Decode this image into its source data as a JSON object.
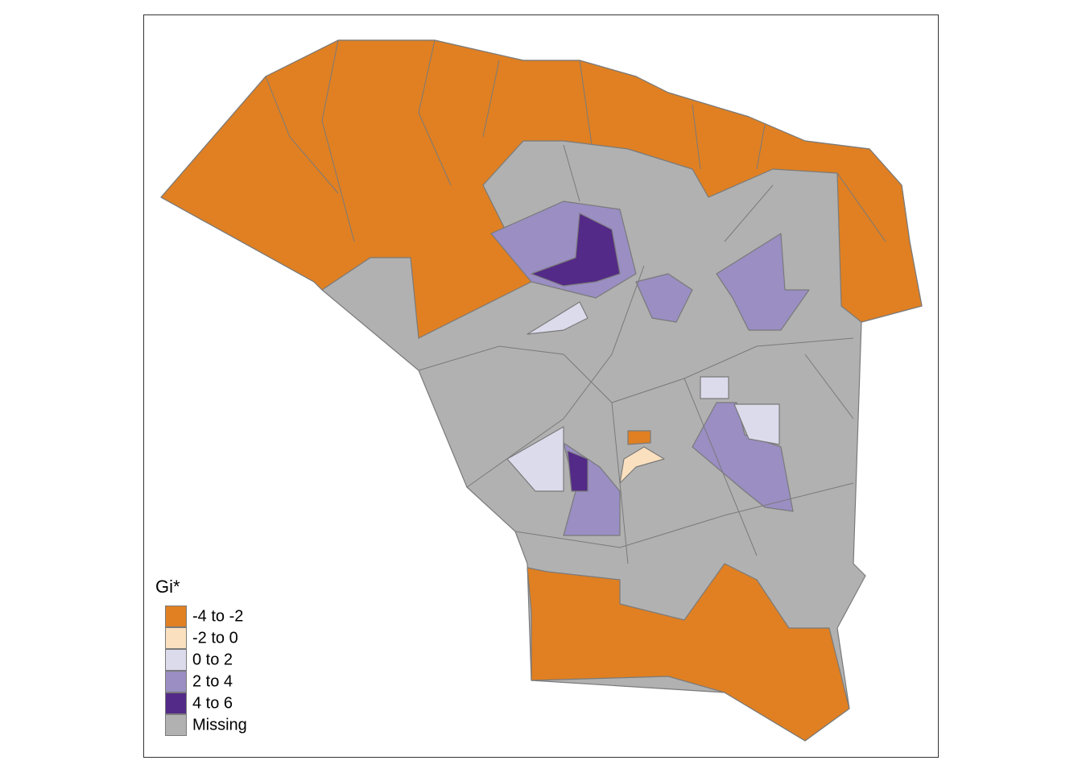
{
  "legend": {
    "title": "Gi*",
    "items": [
      {
        "label": "-4 to -2",
        "color": "#e08022"
      },
      {
        "label": "-2 to 0",
        "color": "#fbe0bf"
      },
      {
        "label": "0 to 2",
        "color": "#dcdbec"
      },
      {
        "label": "2 to 4",
        "color": "#9a8ec3"
      },
      {
        "label": "4 to 6",
        "color": "#532a87"
      },
      {
        "label": "Missing",
        "color": "#b1b1b1"
      }
    ]
  }
}
